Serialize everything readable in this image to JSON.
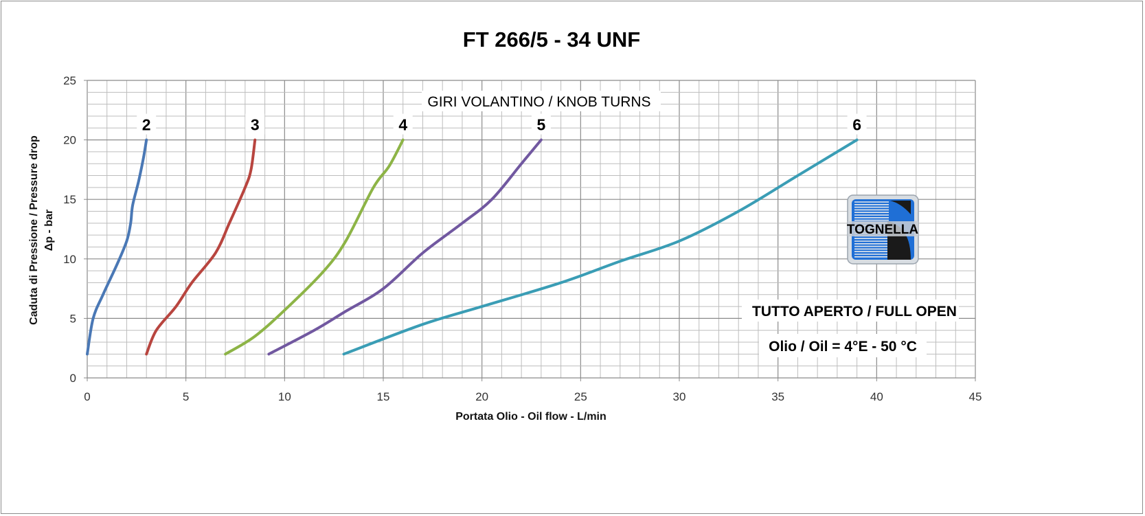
{
  "chart_data": {
    "type": "line",
    "title": "FT 266/5 - 34 UNF",
    "xlabel": "Portata Olio - Oil flow -  L/min",
    "ylabel_line1": "Caduta di Pressione / Pressure drop",
    "ylabel_line2": "Δp - bar",
    "xlim": [
      0,
      45
    ],
    "ylim": [
      0,
      25
    ],
    "x_ticks": [
      0,
      5,
      10,
      15,
      20,
      25,
      30,
      35,
      40,
      45
    ],
    "y_ticks": [
      0,
      5,
      10,
      15,
      20,
      25
    ],
    "grid": true,
    "legend": "none",
    "annotations": {
      "knob_turns": "GIRI VOLANTINO / KNOB TURNS",
      "full_open": "TUTTO APERTO / FULL OPEN",
      "oil": "Olio / Oil = 4°E - 50 °C"
    },
    "series": [
      {
        "name": "2",
        "color": "#4a78b5",
        "points": [
          [
            0,
            2
          ],
          [
            0.3,
            5
          ],
          [
            0.8,
            7
          ],
          [
            1.5,
            9.5
          ],
          [
            2.0,
            11.5
          ],
          [
            2.2,
            13
          ],
          [
            2.3,
            14.5
          ],
          [
            2.6,
            16.5
          ],
          [
            2.85,
            18.5
          ],
          [
            3.0,
            20
          ]
        ]
      },
      {
        "name": "3",
        "color": "#b8453f",
        "points": [
          [
            3,
            2
          ],
          [
            3.5,
            4
          ],
          [
            4.5,
            6
          ],
          [
            5.3,
            8
          ],
          [
            6.5,
            10.5
          ],
          [
            7.2,
            13
          ],
          [
            8.0,
            16
          ],
          [
            8.3,
            17.5
          ],
          [
            8.5,
            20
          ]
        ]
      },
      {
        "name": "4",
        "color": "#8db446",
        "points": [
          [
            7,
            2
          ],
          [
            8.5,
            3.5
          ],
          [
            10.2,
            6
          ],
          [
            12,
            9
          ],
          [
            13.1,
            11.5
          ],
          [
            14.5,
            16
          ],
          [
            15.3,
            17.8
          ],
          [
            16,
            20
          ]
        ]
      },
      {
        "name": "5",
        "color": "#7158a0",
        "points": [
          [
            9.2,
            2
          ],
          [
            11.5,
            4
          ],
          [
            13,
            5.5
          ],
          [
            15,
            7.5
          ],
          [
            17,
            10.5
          ],
          [
            19,
            13
          ],
          [
            20.5,
            15
          ],
          [
            22,
            18
          ],
          [
            23,
            20
          ]
        ]
      },
      {
        "name": "6",
        "color": "#3a9db5",
        "points": [
          [
            13,
            2
          ],
          [
            17,
            4.5
          ],
          [
            20,
            6
          ],
          [
            24,
            8
          ],
          [
            27,
            9.8
          ],
          [
            30,
            11.5
          ],
          [
            33,
            14
          ],
          [
            36,
            17
          ],
          [
            39,
            20
          ]
        ]
      }
    ]
  },
  "logo": {
    "text": "TOGNELLA",
    "colors": {
      "blue": "#1f6fd6",
      "dark": "#1a1a1a",
      "silver": "#c9ced4"
    }
  }
}
